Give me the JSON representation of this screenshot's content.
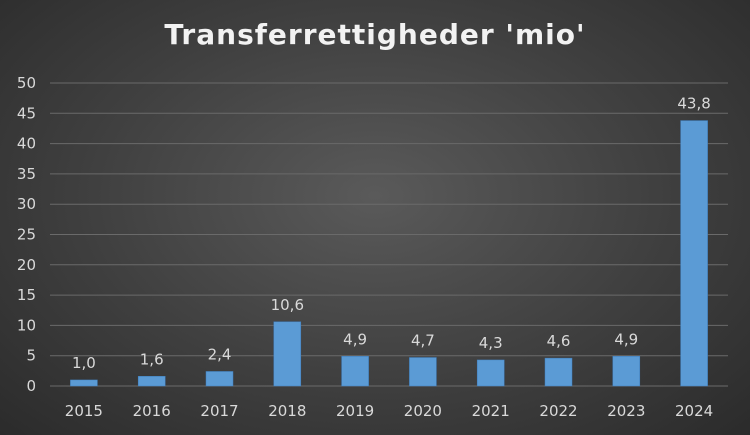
{
  "chart_data": {
    "type": "bar",
    "title": "Transferrettigheder 'mio'",
    "categories": [
      "2015",
      "2016",
      "2017",
      "2018",
      "2019",
      "2020",
      "2021",
      "2022",
      "2023",
      "2024"
    ],
    "values": [
      1.0,
      1.6,
      2.4,
      10.6,
      4.9,
      4.7,
      4.3,
      4.6,
      4.9,
      43.8
    ],
    "data_labels": [
      "1,0",
      "1,6",
      "2,4",
      "10,6",
      "4,9",
      "4,7",
      "4,3",
      "4,6",
      "4,9",
      "43,8"
    ],
    "y_ticks": [
      "0",
      "5",
      "10",
      "15",
      "20",
      "25",
      "30",
      "35",
      "40",
      "45",
      "50"
    ],
    "ylim": [
      0,
      50
    ],
    "grid": true,
    "colors": {
      "bar": "#5b9bd5",
      "bar_edge": "#3f7fbf",
      "grid": "#6a6a6a",
      "text": "#d9d9d9"
    }
  }
}
